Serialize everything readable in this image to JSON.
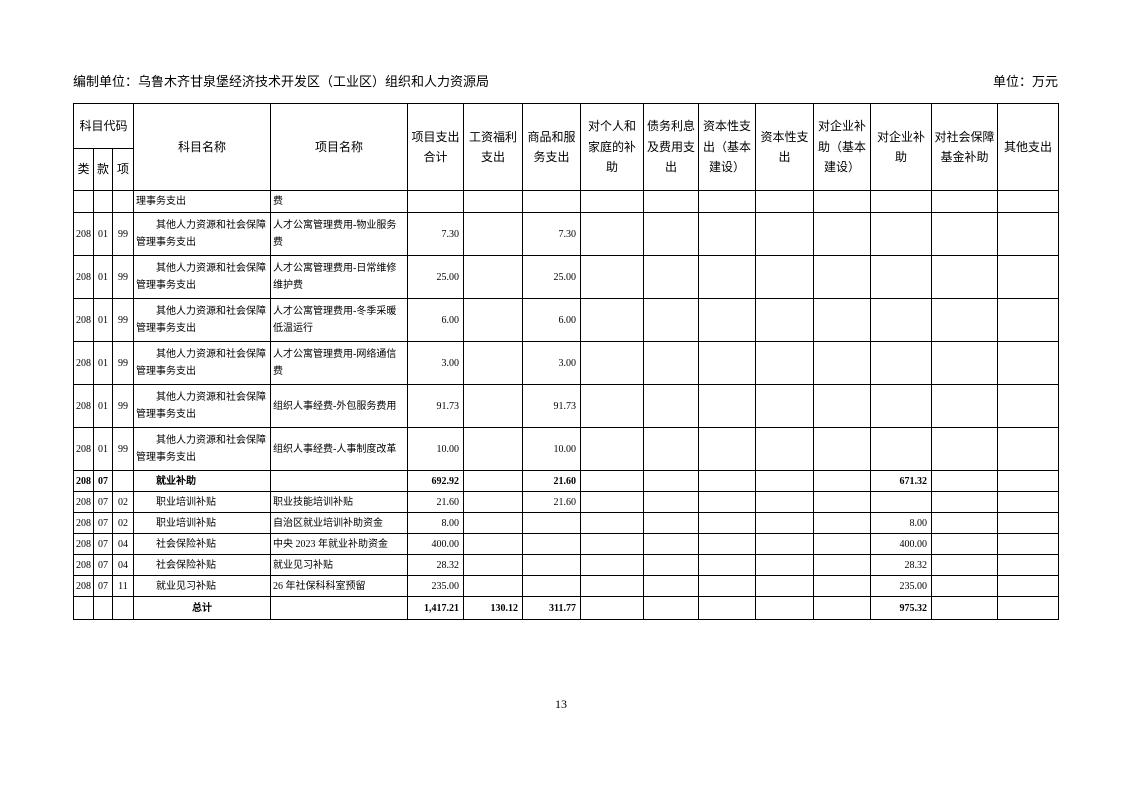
{
  "page": {
    "prepared_by": "编制单位：乌鲁木齐甘泉堡经济技术开发区（工业区）组织和人力资源局",
    "unit": "单位：万元",
    "page_number": "13"
  },
  "table": {
    "header": {
      "subject_code": "科目代码",
      "code_class": "类",
      "code_section": "款",
      "code_item": "项",
      "subject_name": "科目名称",
      "project_name": "项目名称",
      "value_columns": [
        "项目支出合计",
        "工资福利支出",
        "商品和服务支出",
        "对个人和家庭的补助",
        "债务利息及费用支出",
        "资本性支出（基本建设）",
        "资本性支出",
        "对企业补助（基本建设）",
        "对企业补助",
        "对社会保障基金补助",
        "其他支出"
      ]
    },
    "rows": [
      {
        "cls": "",
        "sec": "",
        "item": "",
        "subject": "理事务支出",
        "project": "费",
        "values": [
          "",
          "",
          "",
          "",
          "",
          "",
          "",
          "",
          "",
          "",
          ""
        ],
        "style": "cont",
        "bold": false
      },
      {
        "cls": "208",
        "sec": "01",
        "item": "99",
        "subject": "其他人力资源和社会保障管理事务支出",
        "project": "人才公寓管理费用-物业服务费",
        "values": [
          "7.30",
          "",
          "7.30",
          "",
          "",
          "",
          "",
          "",
          "",
          "",
          ""
        ],
        "style": "tall",
        "bold": false
      },
      {
        "cls": "208",
        "sec": "01",
        "item": "99",
        "subject": "其他人力资源和社会保障管理事务支出",
        "project": "人才公寓管理费用-日常维修维护费",
        "values": [
          "25.00",
          "",
          "25.00",
          "",
          "",
          "",
          "",
          "",
          "",
          "",
          ""
        ],
        "style": "tall",
        "bold": false
      },
      {
        "cls": "208",
        "sec": "01",
        "item": "99",
        "subject": "其他人力资源和社会保障管理事务支出",
        "project": "人才公寓管理费用-冬季采暖低温运行",
        "values": [
          "6.00",
          "",
          "6.00",
          "",
          "",
          "",
          "",
          "",
          "",
          "",
          ""
        ],
        "style": "tall",
        "bold": false
      },
      {
        "cls": "208",
        "sec": "01",
        "item": "99",
        "subject": "其他人力资源和社会保障管理事务支出",
        "project": "人才公寓管理费用-网络通信费",
        "values": [
          "3.00",
          "",
          "3.00",
          "",
          "",
          "",
          "",
          "",
          "",
          "",
          ""
        ],
        "style": "tall",
        "bold": false
      },
      {
        "cls": "208",
        "sec": "01",
        "item": "99",
        "subject": "其他人力资源和社会保障管理事务支出",
        "project": "组织人事经费-外包服务费用",
        "values": [
          "91.73",
          "",
          "91.73",
          "",
          "",
          "",
          "",
          "",
          "",
          "",
          ""
        ],
        "style": "tall",
        "bold": false
      },
      {
        "cls": "208",
        "sec": "01",
        "item": "99",
        "subject": "其他人力资源和社会保障管理事务支出",
        "project": "组织人事经费-人事制度改革",
        "values": [
          "10.00",
          "",
          "10.00",
          "",
          "",
          "",
          "",
          "",
          "",
          "",
          ""
        ],
        "style": "tall",
        "bold": false
      },
      {
        "cls": "208",
        "sec": "07",
        "item": "",
        "subject": "就业补助",
        "project": "",
        "values": [
          "692.92",
          "",
          "21.60",
          "",
          "",
          "",
          "",
          "",
          "671.32",
          "",
          ""
        ],
        "style": "short",
        "bold": true
      },
      {
        "cls": "208",
        "sec": "07",
        "item": "02",
        "subject": "职业培训补贴",
        "project": "职业技能培训补贴",
        "values": [
          "21.60",
          "",
          "21.60",
          "",
          "",
          "",
          "",
          "",
          "",
          "",
          ""
        ],
        "style": "short",
        "bold": false
      },
      {
        "cls": "208",
        "sec": "07",
        "item": "02",
        "subject": "职业培训补贴",
        "project": "自治区就业培训补助资金",
        "values": [
          "8.00",
          "",
          "",
          "",
          "",
          "",
          "",
          "",
          "8.00",
          "",
          ""
        ],
        "style": "short",
        "bold": false
      },
      {
        "cls": "208",
        "sec": "07",
        "item": "04",
        "subject": "社会保险补贴",
        "project": "中央 2023 年就业补助资金",
        "values": [
          "400.00",
          "",
          "",
          "",
          "",
          "",
          "",
          "",
          "400.00",
          "",
          ""
        ],
        "style": "short",
        "bold": false
      },
      {
        "cls": "208",
        "sec": "07",
        "item": "04",
        "subject": "社会保险补贴",
        "project": "就业见习补贴",
        "values": [
          "28.32",
          "",
          "",
          "",
          "",
          "",
          "",
          "",
          "28.32",
          "",
          ""
        ],
        "style": "short",
        "bold": false
      },
      {
        "cls": "208",
        "sec": "07",
        "item": "11",
        "subject": "就业见习补贴",
        "project": "26 年社保科科室预留",
        "values": [
          "235.00",
          "",
          "",
          "",
          "",
          "",
          "",
          "",
          "235.00",
          "",
          ""
        ],
        "style": "short",
        "bold": false
      },
      {
        "cls": "",
        "sec": "",
        "item": "",
        "subject": "总计",
        "project": "",
        "values": [
          "1,417.21",
          "130.12",
          "311.77",
          "",
          "",
          "",
          "",
          "",
          "975.32",
          "",
          ""
        ],
        "style": "total",
        "bold": true
      }
    ]
  }
}
